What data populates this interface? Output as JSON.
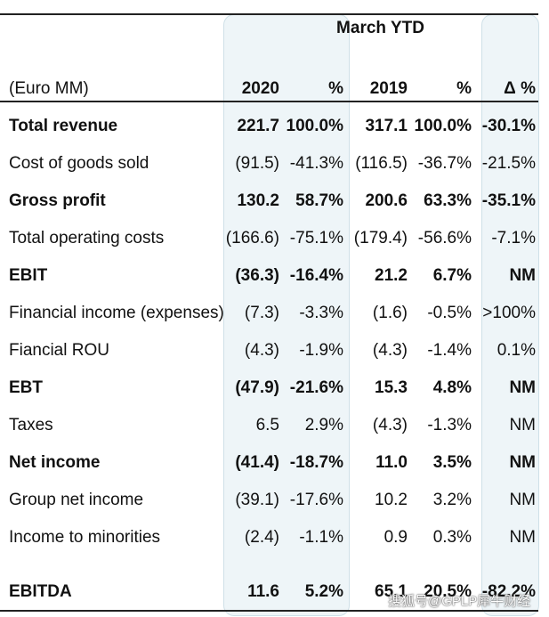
{
  "table": {
    "group_title": "March YTD",
    "headers": {
      "label": "(Euro MM)",
      "y2020": "2020",
      "pct2020": "%",
      "y2019": "2019",
      "pct2019": "%",
      "delta": "Δ %"
    },
    "rows": [
      {
        "label": "Total revenue",
        "v2020": "221.7",
        "p2020": "100.0%",
        "v2019": "317.1",
        "p2019": "100.0%",
        "delta": "-30.1%",
        "bold": true
      },
      {
        "label": "Cost of goods sold",
        "v2020": "(91.5)",
        "p2020": "-41.3%",
        "v2019": "(116.5)",
        "p2019": "-36.7%",
        "delta": "-21.5%",
        "bold": false
      },
      {
        "label": "Gross profit",
        "v2020": "130.2",
        "p2020": "58.7%",
        "v2019": "200.6",
        "p2019": "63.3%",
        "delta": "-35.1%",
        "bold": true
      },
      {
        "label": "Total operating costs",
        "v2020": "(166.6)",
        "p2020": "-75.1%",
        "v2019": "(179.4)",
        "p2019": "-56.6%",
        "delta": "-7.1%",
        "bold": false
      },
      {
        "label": "EBIT",
        "v2020": "(36.3)",
        "p2020": "-16.4%",
        "v2019": "21.2",
        "p2019": "6.7%",
        "delta": "NM",
        "bold": true
      },
      {
        "label": "Financial income (expenses)",
        "v2020": "(7.3)",
        "p2020": "-3.3%",
        "v2019": "(1.6)",
        "p2019": "-0.5%",
        "delta": ">100%",
        "bold": false
      },
      {
        "label": "Fiancial ROU",
        "v2020": "(4.3)",
        "p2020": "-1.9%",
        "v2019": "(4.3)",
        "p2019": "-1.4%",
        "delta": "0.1%",
        "bold": false
      },
      {
        "label": "EBT",
        "v2020": "(47.9)",
        "p2020": "-21.6%",
        "v2019": "15.3",
        "p2019": "4.8%",
        "delta": "NM",
        "bold": true
      },
      {
        "label": "Taxes",
        "v2020": "6.5",
        "p2020": "2.9%",
        "v2019": "(4.3)",
        "p2019": "-1.3%",
        "delta": "NM",
        "bold": false
      },
      {
        "label": "Net income",
        "v2020": "(41.4)",
        "p2020": "-18.7%",
        "v2019": "11.0",
        "p2019": "3.5%",
        "delta": "NM",
        "bold": true
      },
      {
        "label": "Group net income",
        "v2020": "(39.1)",
        "p2020": "-17.6%",
        "v2019": "10.2",
        "p2019": "3.2%",
        "delta": "NM",
        "bold": false
      },
      {
        "label": "Income to minorities",
        "v2020": "(2.4)",
        "p2020": "-1.1%",
        "v2019": "0.9",
        "p2019": "0.3%",
        "delta": "NM",
        "bold": false
      },
      {
        "label": "EBITDA",
        "v2020": "11.6",
        "p2020": "5.2%",
        "v2019": "65.1",
        "p2019": "20.5%",
        "delta": "-82.2%",
        "bold": true
      }
    ]
  },
  "watermark": "搜狐号@GPLP犀牛财经"
}
